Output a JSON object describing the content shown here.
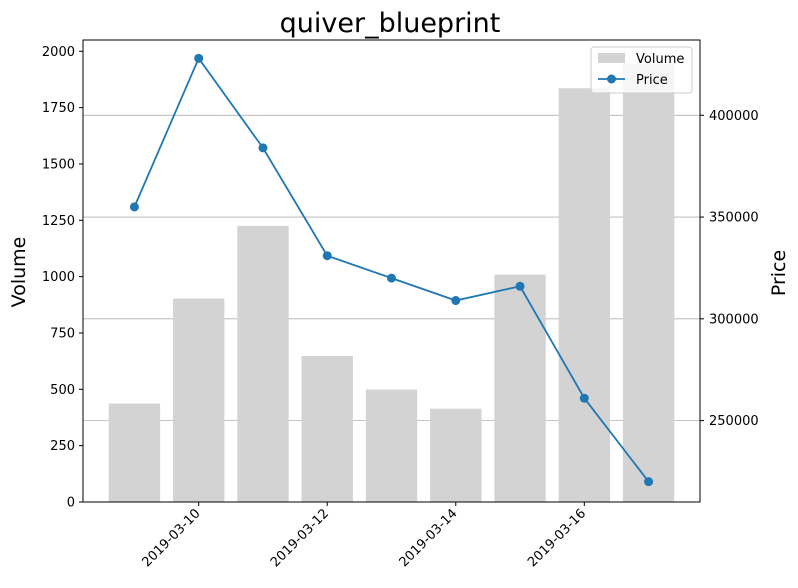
{
  "chart_data": {
    "type": "bar+line",
    "title": "quiver_blueprint",
    "dates": [
      "2019-03-09",
      "2019-03-10",
      "2019-03-11",
      "2019-03-12",
      "2019-03-13",
      "2019-03-14",
      "2019-03-15",
      "2019-03-16",
      "2019-03-17"
    ],
    "x_tick_labels": [
      "2019-03-10",
      "2019-03-12",
      "2019-03-14",
      "2019-03-16"
    ],
    "series": [
      {
        "name": "Volume",
        "kind": "bar",
        "axis": "left",
        "color": "#d3d3d3",
        "values": [
          437,
          903,
          1225,
          648,
          499,
          414,
          1009,
          1836,
          1945
        ]
      },
      {
        "name": "Price",
        "kind": "line",
        "axis": "right",
        "color": "#1f77b4",
        "values": [
          355000,
          428000,
          384000,
          331000,
          320000,
          309000,
          316000,
          261000,
          220000
        ]
      }
    ],
    "ylabel_left": "Volume",
    "ylabel_right": "Price",
    "ylim_left": [
      0,
      2050
    ],
    "yticks_left": [
      0,
      250,
      500,
      750,
      1000,
      1250,
      1500,
      1750,
      2000
    ],
    "ylim_right": [
      210000,
      437000
    ],
    "yticks_right": [
      250000,
      300000,
      350000,
      400000
    ],
    "grid": "horizontal lines at right-axis ticks",
    "legend": "top-right"
  }
}
